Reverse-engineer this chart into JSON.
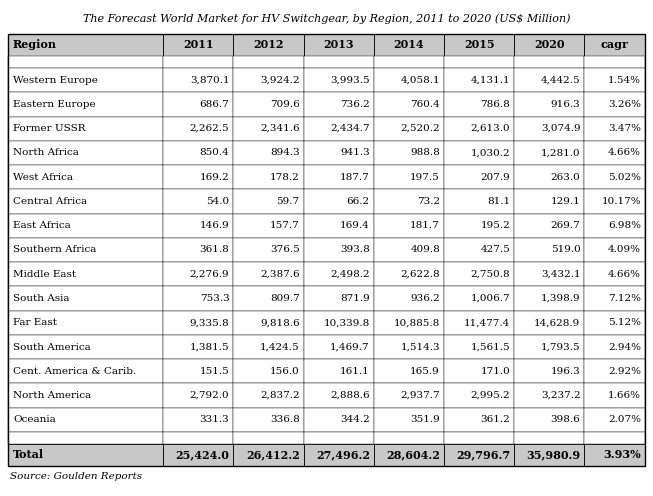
{
  "title": "The Forecast World Market for HV Switchgear, by Region, 2011 to 2020 (US$ Million)",
  "columns": [
    "Region",
    "2011",
    "2012",
    "2013",
    "2014",
    "2015",
    "2020",
    "cagr"
  ],
  "rows": [
    [
      "Western Europe",
      "3,870.1",
      "3,924.2",
      "3,993.5",
      "4,058.1",
      "4,131.1",
      "4,442.5",
      "1.54%"
    ],
    [
      "Eastern Europe",
      "686.7",
      "709.6",
      "736.2",
      "760.4",
      "786.8",
      "916.3",
      "3.26%"
    ],
    [
      "Former USSR",
      "2,262.5",
      "2,341.6",
      "2,434.7",
      "2,520.2",
      "2,613.0",
      "3,074.9",
      "3.47%"
    ],
    [
      "North Africa",
      "850.4",
      "894.3",
      "941.3",
      "988.8",
      "1,030.2",
      "1,281.0",
      "4.66%"
    ],
    [
      "West Africa",
      "169.2",
      "178.2",
      "187.7",
      "197.5",
      "207.9",
      "263.0",
      "5.02%"
    ],
    [
      "Central Africa",
      "54.0",
      "59.7",
      "66.2",
      "73.2",
      "81.1",
      "129.1",
      "10.17%"
    ],
    [
      "East Africa",
      "146.9",
      "157.7",
      "169.4",
      "181.7",
      "195.2",
      "269.7",
      "6.98%"
    ],
    [
      "Southern Africa",
      "361.8",
      "376.5",
      "393.8",
      "409.8",
      "427.5",
      "519.0",
      "4.09%"
    ],
    [
      "Middle East",
      "2,276.9",
      "2,387.6",
      "2,498.2",
      "2,622.8",
      "2,750.8",
      "3,432.1",
      "4.66%"
    ],
    [
      "South Asia",
      "753.3",
      "809.7",
      "871.9",
      "936.2",
      "1,006.7",
      "1,398.9",
      "7.12%"
    ],
    [
      "Far East",
      "9,335.8",
      "9,818.6",
      "10,339.8",
      "10,885.8",
      "11,477.4",
      "14,628.9",
      "5.12%"
    ],
    [
      "South America",
      "1,381.5",
      "1,424.5",
      "1,469.7",
      "1,514.3",
      "1,561.5",
      "1,793.5",
      "2.94%"
    ],
    [
      "Cent. America & Carib.",
      "151.5",
      "156.0",
      "161.1",
      "165.9",
      "171.0",
      "196.3",
      "2.92%"
    ],
    [
      "North America",
      "2,792.0",
      "2,837.2",
      "2,888.6",
      "2,937.7",
      "2,995.2",
      "3,237.2",
      "1.66%"
    ],
    [
      "Oceania",
      "331.3",
      "336.8",
      "344.2",
      "351.9",
      "361.2",
      "398.6",
      "2.07%"
    ]
  ],
  "total_row": [
    "Total",
    "25,424.0",
    "26,412.2",
    "27,496.2",
    "28,604.2",
    "29,796.7",
    "35,980.9",
    "3.93%"
  ],
  "source": "Source: Goulden Reports",
  "header_bg": "#c8c8c8",
  "total_bg": "#c8c8c8",
  "cell_font_size": 7.5,
  "header_font_size": 8.0,
  "title_font_size": 8.0,
  "source_font_size": 7.5,
  "col_widths_raw": [
    2.1,
    0.95,
    0.95,
    0.95,
    0.95,
    0.95,
    0.95,
    0.82
  ],
  "fig_width": 6.53,
  "fig_height": 4.96,
  "dpi": 100
}
